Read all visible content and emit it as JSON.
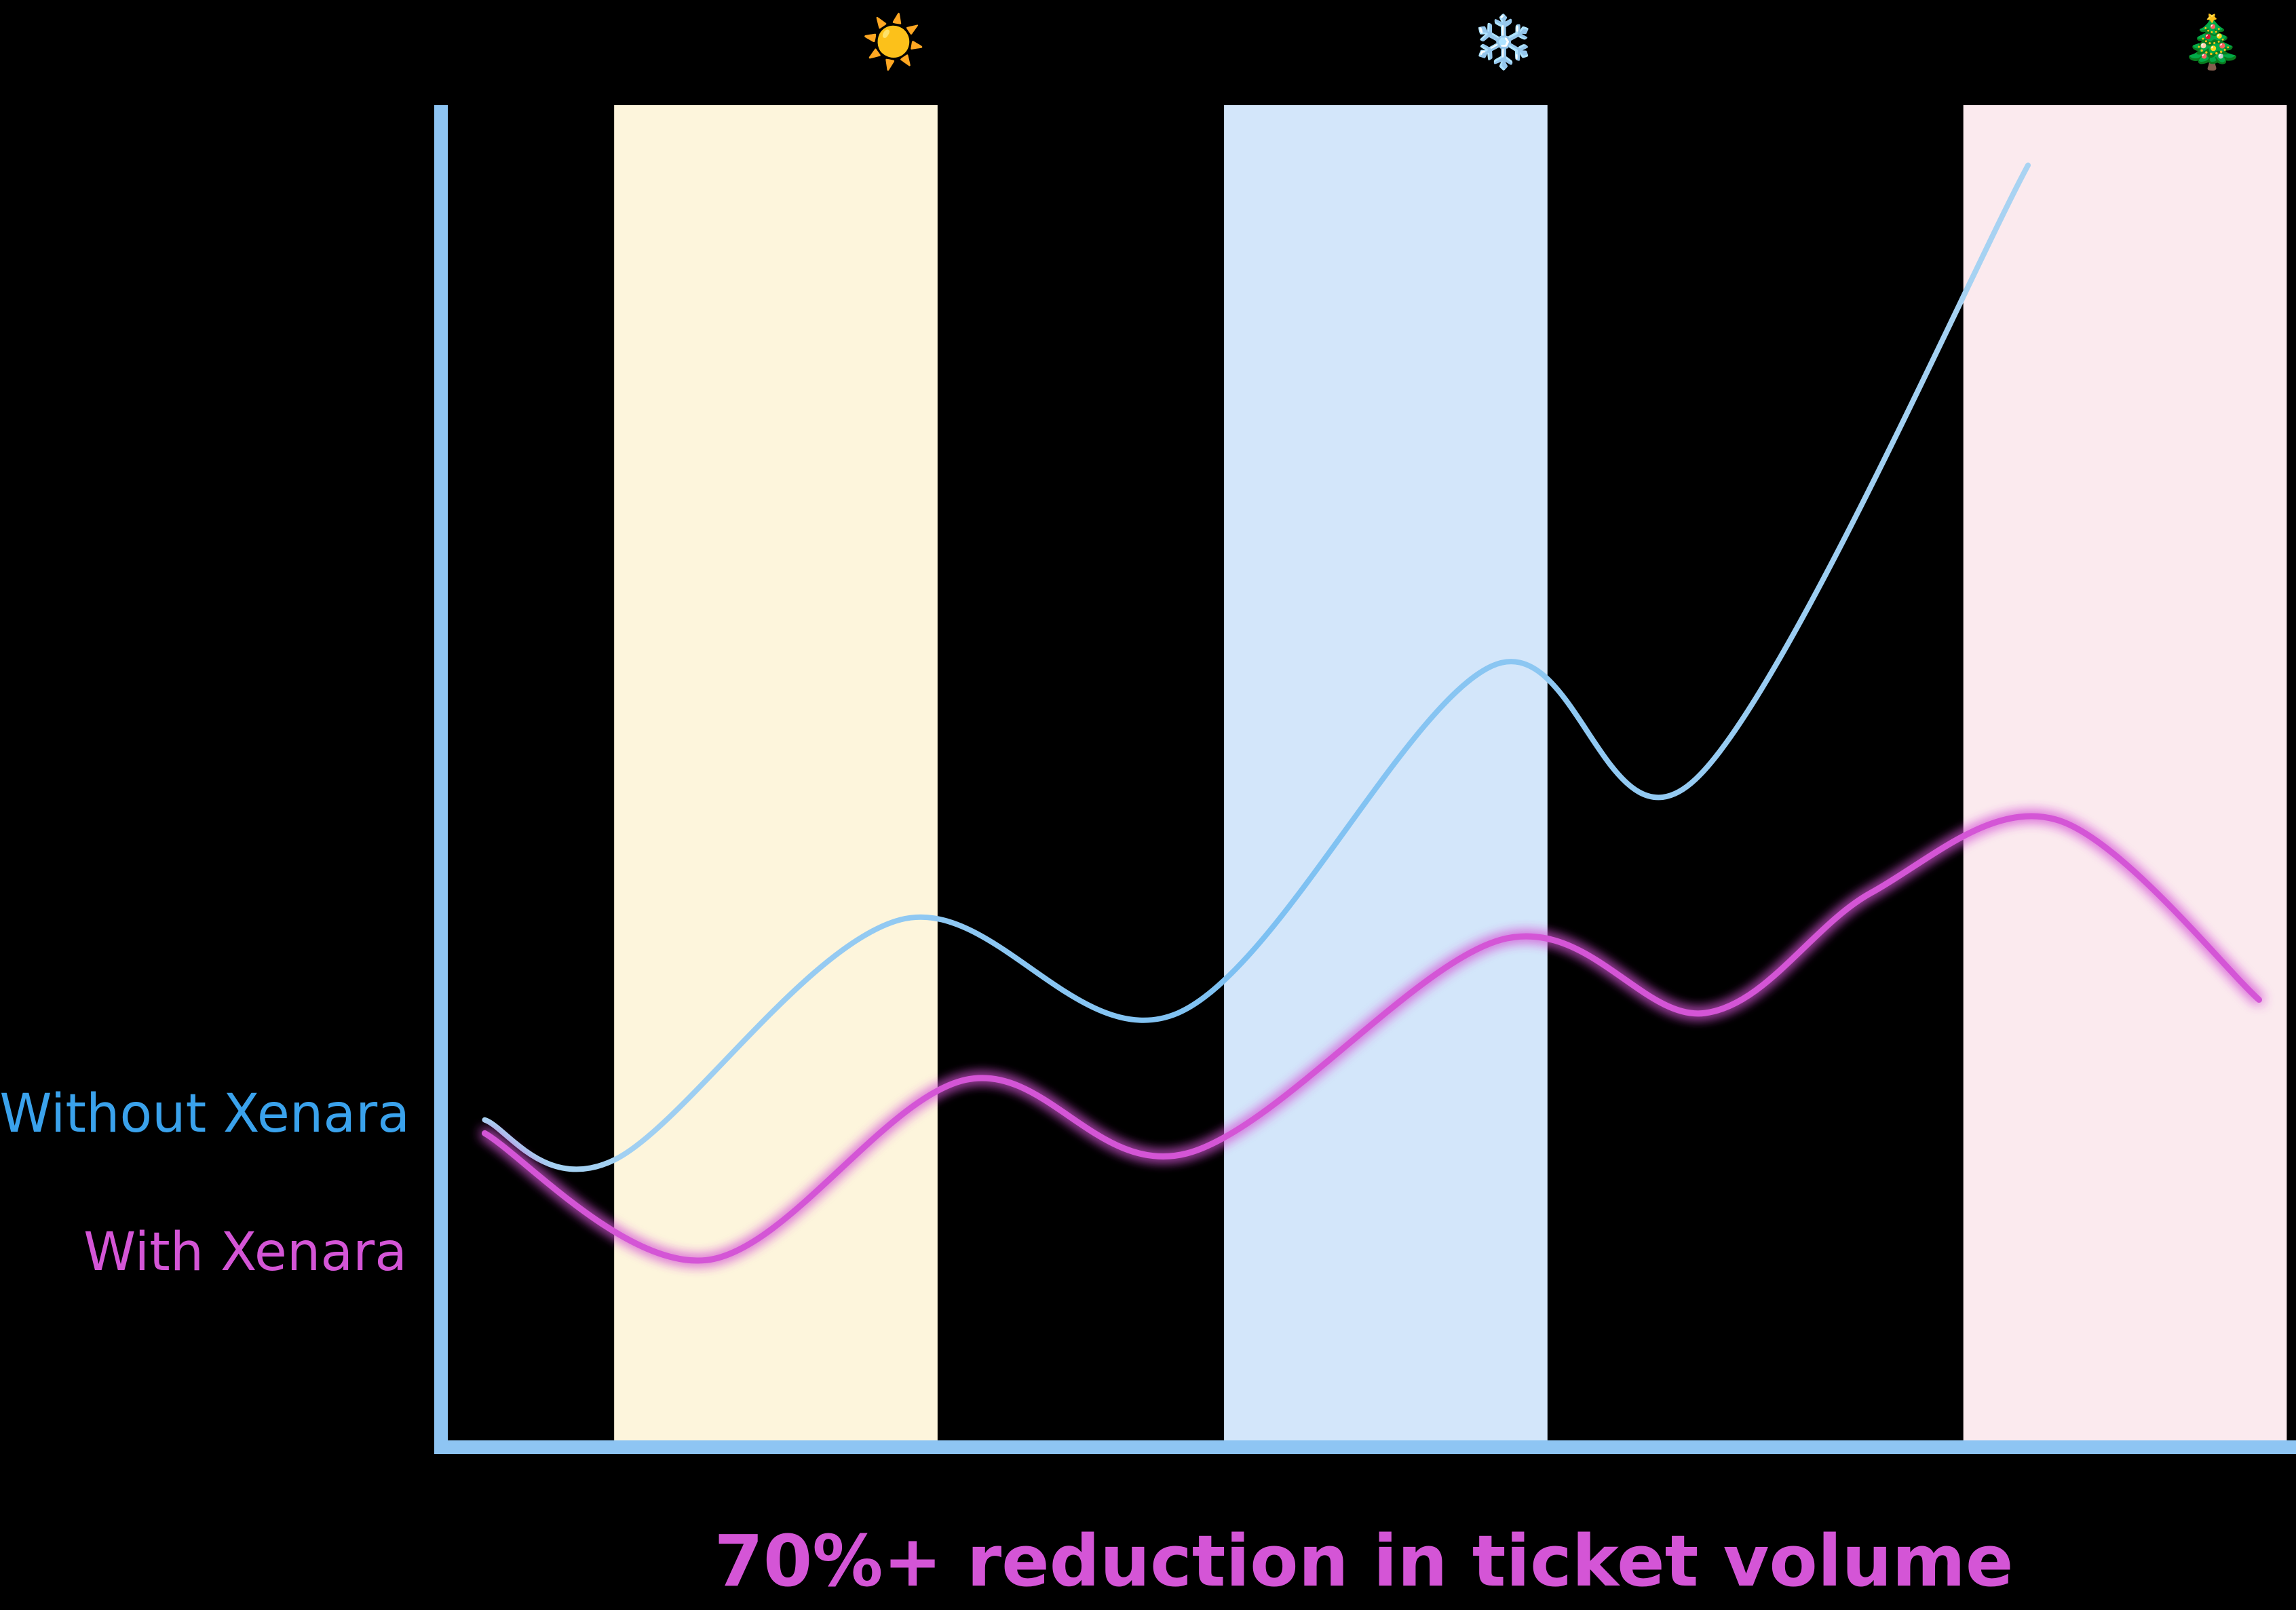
{
  "chart_data": {
    "type": "line",
    "title": "",
    "xlabel": "",
    "ylabel": "",
    "caption": "70%+ reduction in ticket volume",
    "ylim": [
      0,
      100
    ],
    "xlim": [
      0,
      100
    ],
    "grid": false,
    "legend_position": "left",
    "season_bands": [
      {
        "icon": "sun-icon",
        "glyph": "☀️",
        "start": 9,
        "end": 26.5,
        "color": "#fdf5dc"
      },
      {
        "icon": "snowflake-icon",
        "glyph": "❄️",
        "start": 42,
        "end": 59.5,
        "color": "#d3e6fa"
      },
      {
        "icon": "christmas-tree-icon",
        "glyph": "🎄",
        "start": 82,
        "end": 99.5,
        "color": "#fbeaee"
      }
    ],
    "series": [
      {
        "name": "Without Xenara",
        "color": "#8cc4ef",
        "x": [
          2,
          9,
          24.5,
          39.5,
          56.5,
          67.5,
          85.5
        ],
        "y": [
          24,
          21,
          39,
          32,
          58,
          49.5,
          95.5
        ]
      },
      {
        "name": "With Xenara",
        "color": "#d455d6",
        "x": [
          2,
          14,
          28,
          40,
          57,
          68,
          77,
          87,
          98
        ],
        "y": [
          23,
          13.5,
          27,
          21.5,
          37.5,
          32,
          41,
          46.5,
          33
        ]
      }
    ]
  }
}
